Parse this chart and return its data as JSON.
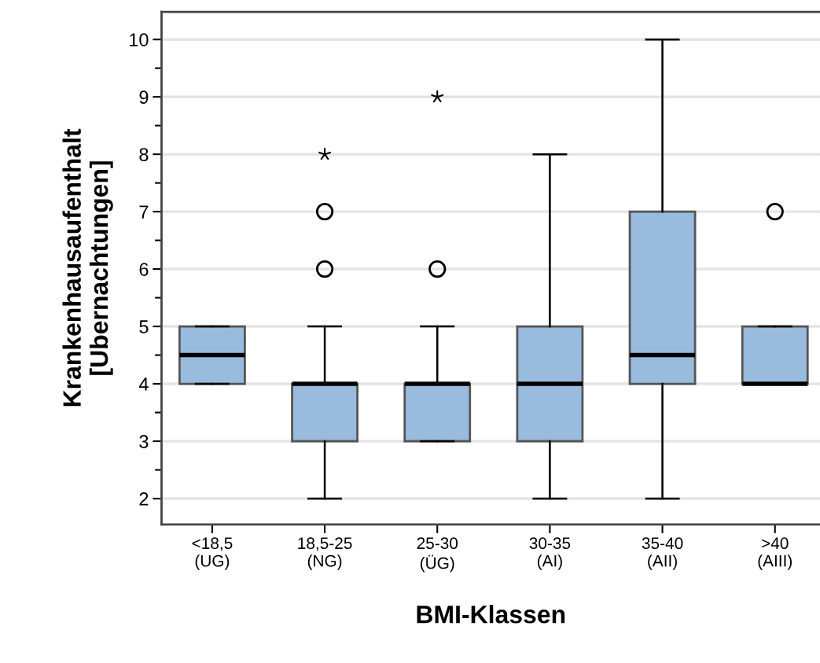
{
  "chart_data": {
    "type": "box",
    "xlabel": "BMI-Klassen",
    "ylabel": "Krankenhausaufenthalt\n[Ubernachtungen]",
    "categories": [
      "<18,5\n(UG)",
      "18,5-25\n(NG)",
      "25-30\n(ÜG)",
      "30-35\n(AI)",
      "35-40\n(AII)",
      ">40\n(AIII)"
    ],
    "ylim": [
      1.55,
      10.48
    ],
    "yticks": [
      2,
      3,
      4,
      5,
      6,
      7,
      8,
      9,
      10
    ],
    "grid": "y",
    "series": [
      {
        "color": "#99bbdd",
        "boxes": [
          {
            "low": 4,
            "q1": 4,
            "median": 4.5,
            "q3": 5,
            "high": 5
          },
          {
            "low": 2,
            "q1": 3,
            "median": 4,
            "q3": 4,
            "high": 5,
            "outliers": [
              6,
              7
            ]
          },
          {
            "low": 3,
            "q1": 3,
            "median": 4,
            "q3": 4,
            "high": 5,
            "outliers": [
              6
            ]
          },
          {
            "low": 2,
            "q1": 3,
            "median": 4,
            "q3": 5,
            "high": 8
          },
          {
            "low": 2,
            "q1": 4,
            "median": 4.5,
            "q3": 7,
            "high": 10
          },
          {
            "low": 4,
            "q1": 4,
            "median": 4,
            "q3": 5,
            "high": 5,
            "outliers": [
              7
            ]
          }
        ]
      },
      {
        "type": "scatter",
        "color": "#000000",
        "marker": "star",
        "x": [
          "18,5-25\n(NG)",
          "25-30\n(ÜG)"
        ],
        "values": [
          8,
          9
        ]
      }
    ]
  }
}
